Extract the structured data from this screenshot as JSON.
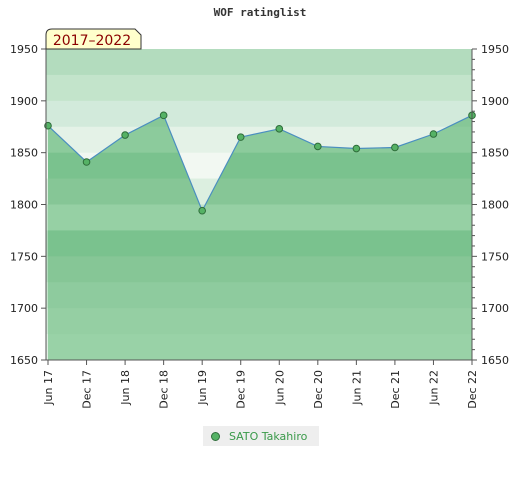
{
  "chart_data": {
    "type": "line",
    "title": "WOF ratinglist",
    "badge": "2017–2022",
    "ylim": [
      1650,
      1950
    ],
    "yticks": [
      1650,
      1700,
      1750,
      1800,
      1850,
      1900,
      1950
    ],
    "categories": [
      "Jun 17",
      "Dec 17",
      "Jun 18",
      "Dec 18",
      "Jun 19",
      "Dec 19",
      "Jun 20",
      "Dec 20",
      "Jun 21",
      "Dec 21",
      "Jun 22",
      "Dec 22"
    ],
    "series": [
      {
        "name": "SATO Takahiro",
        "values": [
          1876,
          1841,
          1867,
          1886,
          1794,
          1865,
          1873,
          1856,
          1854,
          1855,
          1868,
          1886
        ]
      }
    ],
    "legend": "bottom-center",
    "grid": false,
    "colors": {
      "line": "#4a8ec0",
      "marker": "#55b265",
      "marker_border": "#2e6d3a",
      "area": "#6ebd7e",
      "badge_bg": "#ffffcc",
      "badge_text": "#8b0000"
    }
  }
}
